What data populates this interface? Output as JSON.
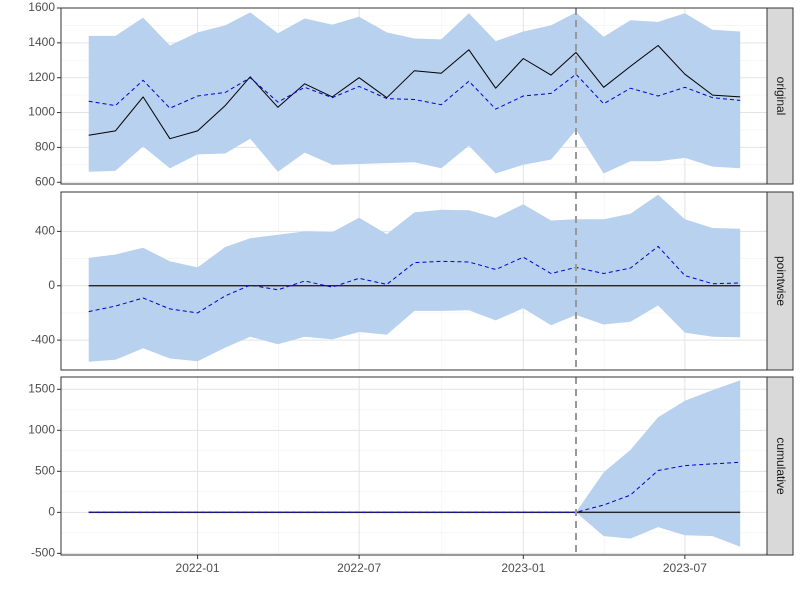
{
  "chart_data": {
    "type": "line",
    "panels": [
      {
        "strip": "original",
        "ylim": [
          590,
          1600
        ],
        "yticks": [
          600,
          800,
          1000,
          1200,
          1400,
          1600
        ],
        "series": [
          {
            "role": "band",
            "color": "#b8d1ee",
            "lower": [
              660,
              665,
              805,
              680,
              760,
              765,
              850,
              660,
              770,
              700,
              705,
              710,
              715,
              680,
              810,
              650,
              700,
              730,
              900,
              650,
              720,
              720,
              740,
              690,
              680
            ],
            "upper": [
              1440,
              1440,
              1545,
              1385,
              1460,
              1500,
              1575,
              1455,
              1540,
              1505,
              1550,
              1460,
              1425,
              1420,
              1570,
              1410,
              1465,
              1500,
              1575,
              1435,
              1530,
              1520,
              1570,
              1475,
              1465
            ]
          },
          {
            "role": "line",
            "style": "solid",
            "color": "#000000",
            "values": [
              870,
              895,
              1090,
              850,
              895,
              1040,
              1205,
              1030,
              1165,
              1090,
              1200,
              1085,
              1240,
              1225,
              1360,
              1140,
              1310,
              1215,
              1345,
              1145,
              1265,
              1385,
              1220,
              1100,
              1090
            ]
          },
          {
            "role": "line",
            "style": "dashed",
            "color": "#0000cc",
            "values": [
              1065,
              1040,
              1185,
              1025,
              1095,
              1115,
              1200,
              1060,
              1145,
              1085,
              1150,
              1080,
              1075,
              1045,
              1180,
              1020,
              1095,
              1110,
              1220,
              1050,
              1140,
              1095,
              1145,
              1085,
              1070
            ]
          }
        ]
      },
      {
        "strip": "pointwise",
        "ylim": [
          -620,
          690
        ],
        "yticks": [
          -400,
          0,
          400
        ],
        "hline": 0,
        "series": [
          {
            "role": "band",
            "color": "#b8d1ee",
            "lower": [
              -560,
              -545,
              -460,
              -535,
              -555,
              -455,
              -375,
              -430,
              -375,
              -395,
              -340,
              -360,
              -185,
              -185,
              -180,
              -255,
              -165,
              -290,
              -215,
              -285,
              -265,
              -145,
              -345,
              -375,
              -380
            ],
            "upper": [
              205,
              230,
              280,
              180,
              135,
              285,
              350,
              375,
              400,
              395,
              500,
              380,
              540,
              560,
              555,
              500,
              600,
              480,
              490,
              490,
              530,
              670,
              490,
              425,
              420
            ]
          },
          {
            "role": "line",
            "style": "solid",
            "color": "#000000",
            "values": [
              0,
              0,
              0,
              0,
              0,
              0,
              0,
              0,
              0,
              0,
              0,
              0,
              0,
              0,
              0,
              0,
              0,
              0,
              0,
              0,
              0,
              0,
              0,
              0,
              0
            ]
          },
          {
            "role": "line",
            "style": "dashed",
            "color": "#0000cc",
            "values": [
              -190,
              -150,
              -90,
              -170,
              -200,
              -75,
              5,
              -30,
              35,
              -10,
              55,
              10,
              170,
              180,
              175,
              120,
              210,
              90,
              135,
              90,
              130,
              290,
              75,
              15,
              20
            ]
          }
        ]
      },
      {
        "strip": "cumulative",
        "ylim": [
          -520,
          1650
        ],
        "yticks": [
          -500,
          0,
          500,
          1000,
          1500
        ],
        "hline": 0,
        "series": [
          {
            "role": "band",
            "color": "#b8d1ee",
            "lower": [
              0,
              0,
              0,
              0,
              0,
              0,
              0,
              0,
              0,
              0,
              0,
              0,
              0,
              0,
              0,
              0,
              0,
              0,
              0,
              -290,
              -320,
              -180,
              -280,
              -290,
              -420
            ],
            "upper": [
              0,
              0,
              0,
              0,
              0,
              0,
              0,
              0,
              0,
              0,
              0,
              0,
              0,
              0,
              0,
              0,
              0,
              0,
              0,
              490,
              760,
              1160,
              1360,
              1490,
              1610
            ]
          },
          {
            "role": "line",
            "style": "solid",
            "color": "#000000",
            "values": [
              0,
              0,
              0,
              0,
              0,
              0,
              0,
              0,
              0,
              0,
              0,
              0,
              0,
              0,
              0,
              0,
              0,
              0,
              0,
              0,
              0,
              0,
              0,
              0,
              0
            ]
          },
          {
            "role": "line",
            "style": "dashed",
            "color": "#0000cc",
            "values": [
              0,
              0,
              0,
              0,
              0,
              0,
              0,
              0,
              0,
              0,
              0,
              0,
              0,
              0,
              0,
              0,
              0,
              0,
              0,
              90,
              210,
              510,
              570,
              590,
              610
            ]
          }
        ]
      }
    ],
    "x": [
      "2021-09-01",
      "2021-10-01",
      "2021-11-01",
      "2021-12-01",
      "2022-01-01",
      "2022-02-01",
      "2022-03-01",
      "2022-04-01",
      "2022-05-01",
      "2022-06-01",
      "2022-07-01",
      "2022-08-01",
      "2022-09-01",
      "2022-10-01",
      "2022-11-01",
      "2022-12-01",
      "2023-01-01",
      "2023-02-01",
      "2023-03-01",
      "2023-04-01",
      "2023-05-01",
      "2023-06-01",
      "2023-07-01",
      "2023-08-01",
      "2023-09-01"
    ],
    "xlim": [
      "2021-08-01",
      "2023-10-01"
    ],
    "xticks": [
      {
        "date": "2022-01-01",
        "label": "2022-01"
      },
      {
        "date": "2022-07-01",
        "label": "2022-07"
      },
      {
        "date": "2023-01-01",
        "label": "2023-01"
      },
      {
        "date": "2023-07-01",
        "label": "2023-07"
      }
    ],
    "vline": {
      "date": "2023-03-01",
      "style": "dashed",
      "color": "#999999"
    },
    "grid": true,
    "strip_color": "#d9d9d9"
  }
}
